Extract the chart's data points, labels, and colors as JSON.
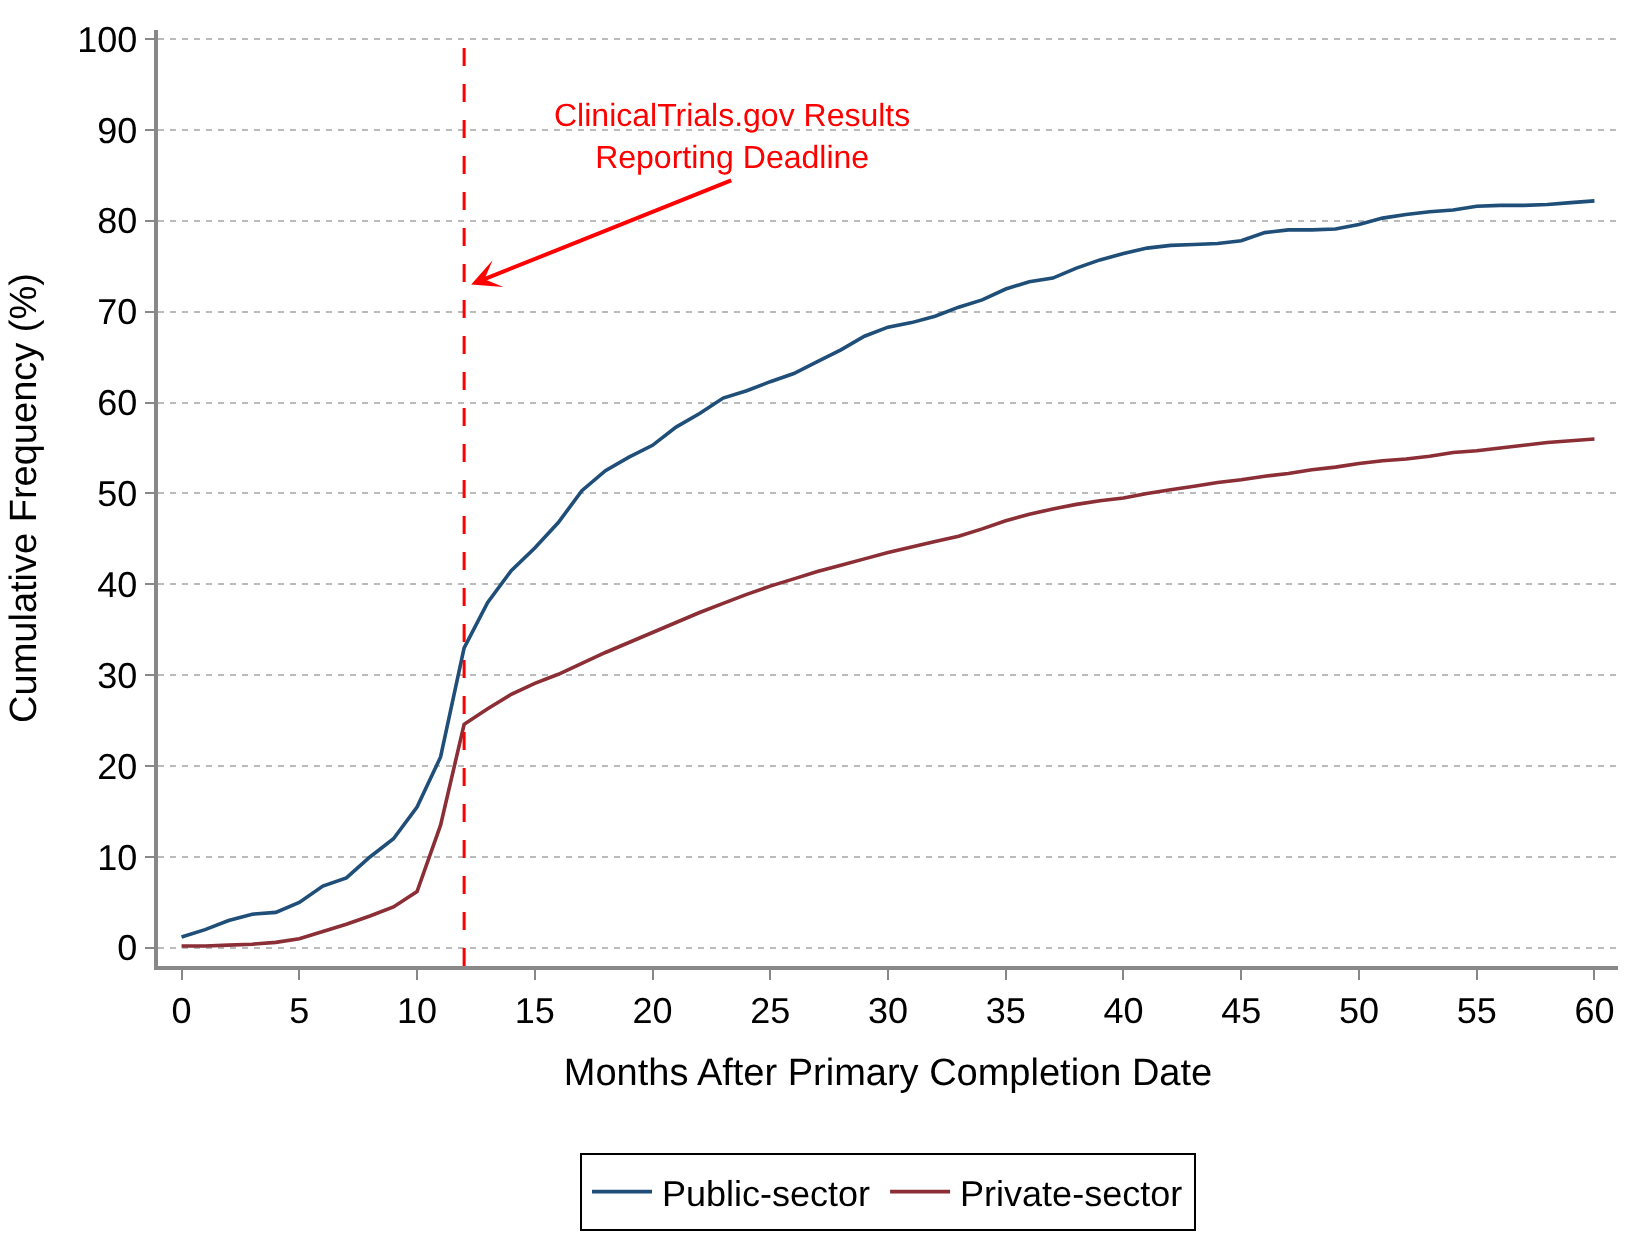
{
  "chart_data": {
    "type": "line",
    "xlabel": "Months After Primary Completion Date",
    "ylabel": "Cumulative Frequency (%)",
    "x": [
      0,
      1,
      2,
      3,
      4,
      5,
      6,
      7,
      8,
      9,
      10,
      11,
      12,
      13,
      14,
      15,
      16,
      17,
      18,
      19,
      20,
      21,
      22,
      23,
      24,
      25,
      26,
      27,
      28,
      29,
      30,
      31,
      32,
      33,
      34,
      35,
      36,
      37,
      38,
      39,
      40,
      41,
      42,
      43,
      44,
      45,
      46,
      47,
      48,
      49,
      50,
      51,
      52,
      53,
      54,
      55,
      56,
      57,
      58,
      59,
      60
    ],
    "series": [
      {
        "name": "Public-sector",
        "color": "#1f4e79",
        "values": [
          1.2,
          2,
          3,
          3.7,
          3.9,
          5,
          6.8,
          7.7,
          10,
          12,
          15.5,
          21,
          33,
          38,
          41.5,
          44,
          46.8,
          50.3,
          52.5,
          54,
          55.3,
          57.3,
          58.8,
          60.5,
          61.3,
          62.3,
          63.2,
          64.5,
          65.8,
          67.3,
          68.3,
          68.8,
          69.5,
          70.5,
          71.3,
          72.5,
          73.3,
          73.7,
          74.8,
          75.7,
          76.4,
          77,
          77.3,
          77.4,
          77.5,
          77.8,
          78.7,
          79,
          79,
          79.1,
          79.6,
          80.3,
          80.7,
          81,
          81.2,
          81.6,
          81.7,
          81.7,
          81.8,
          82,
          82.2
        ]
      },
      {
        "name": "Private-sector",
        "color": "#8b2e35",
        "values": [
          0.2,
          0.2,
          0.3,
          0.4,
          0.6,
          1,
          1.8,
          2.6,
          3.5,
          4.5,
          6.2,
          13.5,
          24.6,
          26.3,
          27.9,
          29.1,
          30.1,
          31.3,
          32.5,
          33.6,
          34.7,
          35.8,
          36.9,
          37.9,
          38.9,
          39.8,
          40.6,
          41.4,
          42.1,
          42.8,
          43.5,
          44.1,
          44.7,
          45.3,
          46.1,
          47,
          47.7,
          48.3,
          48.8,
          49.2,
          49.5,
          50,
          50.4,
          50.8,
          51.2,
          51.5,
          51.9,
          52.2,
          52.6,
          52.9,
          53.3,
          53.6,
          53.8,
          54.1,
          54.5,
          54.7,
          55,
          55.3,
          55.6,
          55.8,
          56
        ]
      }
    ],
    "xlim": [
      -1,
      61
    ],
    "ylim": [
      -2,
      101
    ],
    "xticks": [
      0,
      5,
      10,
      15,
      20,
      25,
      30,
      35,
      40,
      45,
      50,
      55,
      60
    ],
    "yticks": [
      0,
      10,
      20,
      30,
      40,
      50,
      60,
      70,
      80,
      90,
      100
    ],
    "ref_lines": [
      {
        "axis": "x",
        "value": 12,
        "color": "#ff0000",
        "line_style": "dashed"
      }
    ],
    "annotations": [
      {
        "text": "ClinicalTrials.gov Results\nReporting Deadline",
        "x": 12.3,
        "y": 73
      }
    ],
    "grid": "y",
    "legend": "bottom",
    "line_style": "solid",
    "marker": "none"
  }
}
